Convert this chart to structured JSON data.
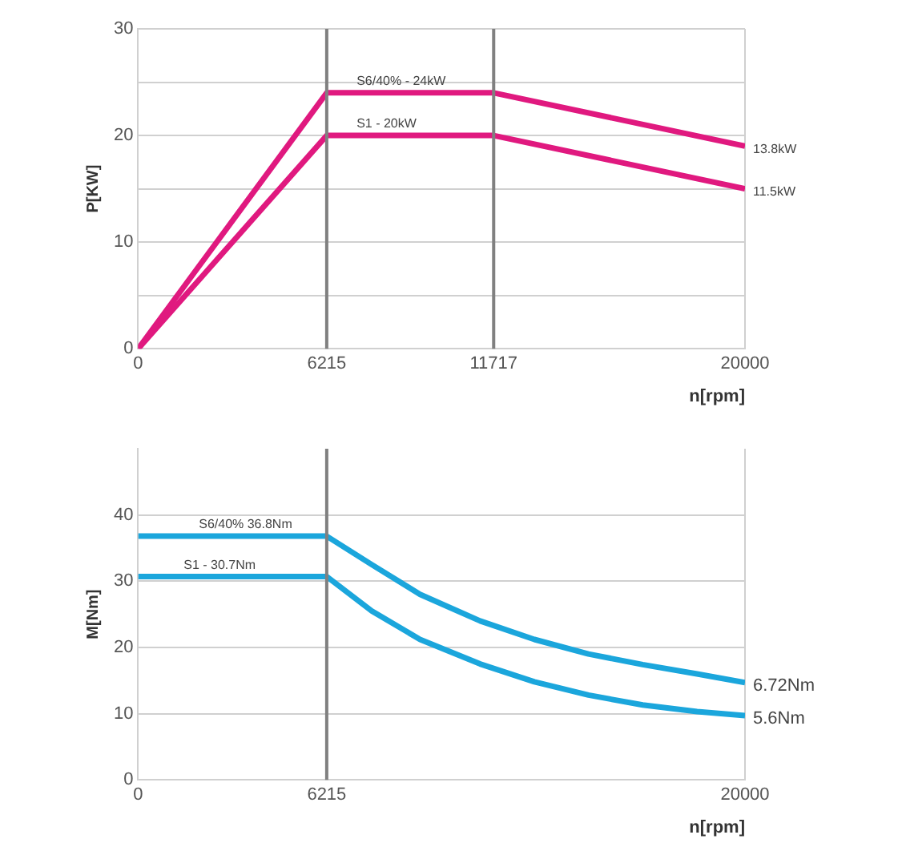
{
  "chart_data": [
    {
      "type": "line",
      "ylabel": "P[KW]",
      "xlabel": "n[rpm]",
      "xlim": [
        0,
        20000
      ],
      "xticks": [
        0,
        6215,
        11717,
        20000
      ],
      "ylim": [
        0,
        30
      ],
      "yticks": [
        0,
        {
          "value": 5,
          "label": null
        },
        10,
        {
          "value": 15,
          "label": null
        },
        20,
        {
          "value": 25,
          "label": null
        },
        30
      ],
      "grid": true,
      "legend": false,
      "marker": "none",
      "line_style": "solid",
      "series": [
        {
          "color": "#e0197f",
          "x": [
            0,
            6215,
            11717,
            20000
          ],
          "values": [
            0,
            24,
            24,
            19
          ]
        },
        {
          "color": "#e0197f",
          "x": [
            0,
            6215,
            11717,
            20000
          ],
          "values": [
            0,
            20,
            20,
            15
          ]
        }
      ],
      "ref_lines": [
        {
          "axis": "x",
          "value": 6215,
          "color": "#808080"
        },
        {
          "axis": "x",
          "value": 11717,
          "color": "#808080"
        }
      ],
      "annotations": [
        {
          "text": "S6/40% - 24kW",
          "x": 7200,
          "y": 24
        },
        {
          "text": "S1 - 20kW",
          "x": 7200,
          "y": 20
        },
        {
          "text": "13.8kW",
          "x": 20000,
          "y": 19
        },
        {
          "text": "11.5kW",
          "x": 20000,
          "y": 15
        }
      ]
    },
    {
      "type": "line",
      "ylabel": "M[Nm]",
      "xlabel": "n[rpm]",
      "xlim": [
        0,
        20000
      ],
      "xticks": [
        0,
        6215,
        20000
      ],
      "ylim": [
        0,
        50
      ],
      "yticks": [
        0,
        10,
        20,
        30,
        40
      ],
      "grid": true,
      "legend": false,
      "marker": "none",
      "line_style": "solid",
      "series": [
        {
          "color": "#1ba6dc",
          "x": [
            0,
            6215,
            7700,
            9290,
            11270,
            13060,
            14840,
            16630,
            18420,
            20000
          ],
          "values": [
            36.8,
            36.8,
            32.5,
            28,
            24,
            21.2,
            19,
            17.4,
            16,
            14.7
          ]
        },
        {
          "color": "#1ba6dc",
          "x": [
            0,
            6215,
            7700,
            9290,
            11270,
            13060,
            14840,
            16630,
            18420,
            20000
          ],
          "values": [
            30.7,
            30.7,
            25.5,
            21.2,
            17.5,
            14.8,
            12.8,
            11.3,
            10.3,
            9.7
          ]
        }
      ],
      "ref_lines": [
        {
          "axis": "x",
          "value": 6215,
          "color": "#808080"
        }
      ],
      "annotations": [
        {
          "text": "S6/40% 36.8Nm",
          "x": 2000,
          "y": 36.8
        },
        {
          "text": "S1 - 30.7Nm",
          "x": 1500,
          "y": 30.7
        },
        {
          "text": "6.72Nm",
          "x": 20000,
          "y": 14.7
        },
        {
          "text": "5.6Nm",
          "x": 20000,
          "y": 9.7
        }
      ]
    }
  ]
}
